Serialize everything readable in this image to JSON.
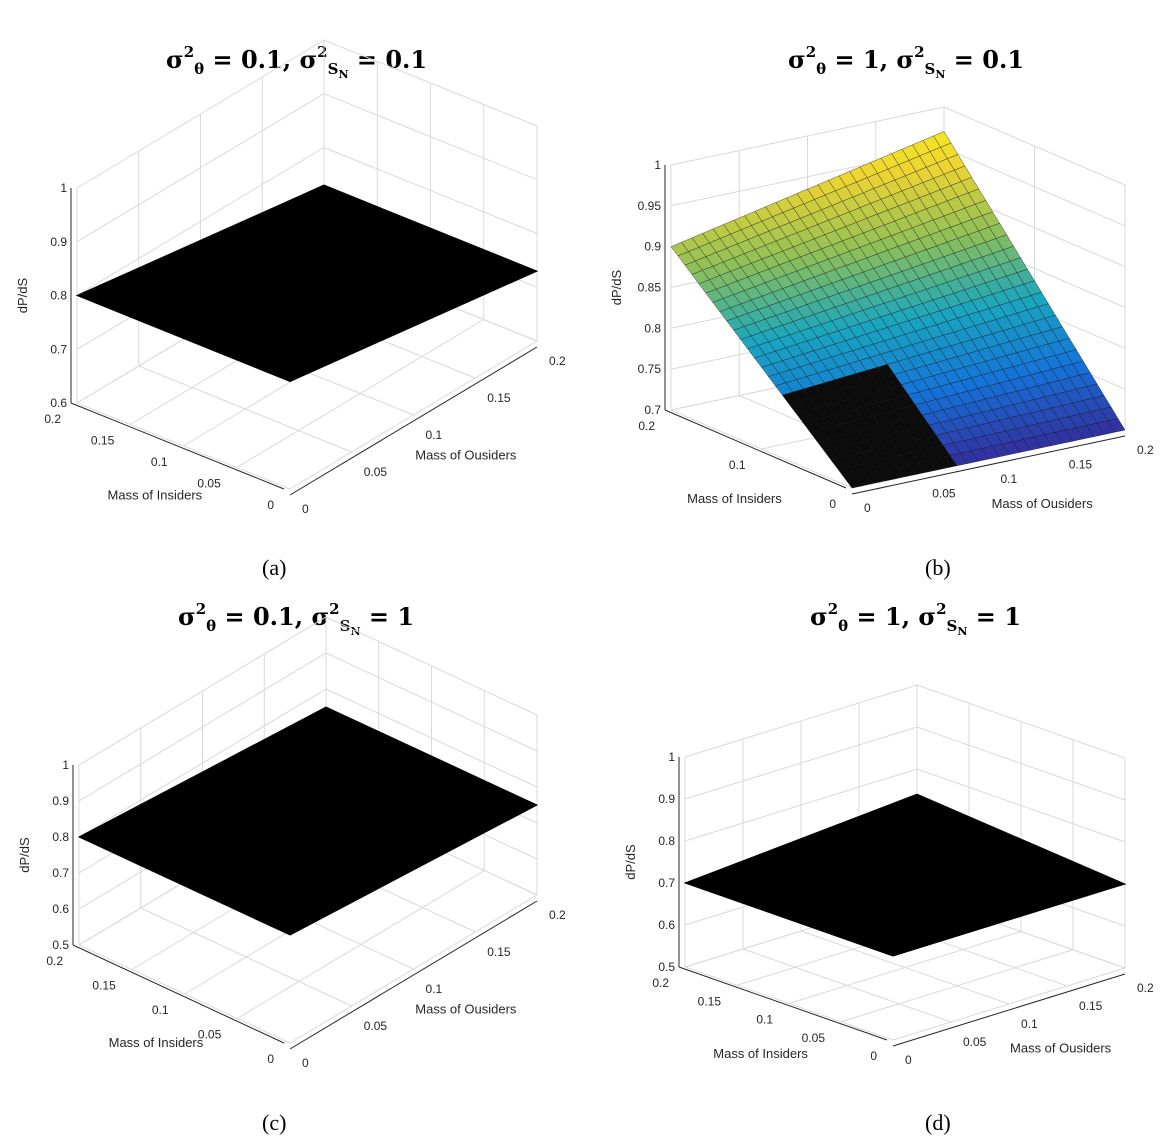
{
  "chart_data": [
    {
      "id": "a",
      "type": "surface3d",
      "title": {
        "sigma_theta": "0.1",
        "sigma_SN": "0.1"
      },
      "caption": "(a)",
      "xlabel": "Mass of Ousiders",
      "ylabel": "Mass of Insiders",
      "zlabel": "dP/dS",
      "xticks": [
        "0",
        "0.05",
        "0.1",
        "0.15",
        "0.2"
      ],
      "yticks": [
        "0",
        "0.05",
        "0.1",
        "0.15",
        "0.2"
      ],
      "zticks": [
        "0.6",
        "0.7",
        "0.8",
        "0.9",
        "1"
      ],
      "xlim": [
        0,
        0.2
      ],
      "ylim": [
        0,
        0.2
      ],
      "zlim": [
        0.6,
        1
      ],
      "surface": {
        "corners": {
          "x0y0": 0.8,
          "x1y0": 0.73,
          "x0y1": 0.8,
          "x1y1": 0.73
        },
        "fill": "solid-black"
      }
    },
    {
      "id": "b",
      "type": "surface3d",
      "title": {
        "sigma_theta": "1",
        "sigma_SN": "0.1"
      },
      "caption": "(b)",
      "xlabel": "Mass of Ousiders",
      "ylabel": "Mass of Insiders",
      "zlabel": "dP/dS",
      "xticks": [
        "0",
        "0.05",
        "0.1",
        "0.15",
        "0.2"
      ],
      "yticks": [
        "0",
        "0.1",
        "0.2"
      ],
      "zticks": [
        "0.7",
        "0.75",
        "0.8",
        "0.85",
        "0.9",
        "0.95",
        "1"
      ],
      "xlim": [
        0,
        0.2
      ],
      "ylim": [
        0,
        0.2
      ],
      "zlim": [
        0.7,
        1
      ],
      "surface": {
        "corners": {
          "x0y0": 0.7,
          "x1y0": 0.7,
          "x0y1": 0.9,
          "x1y1": 0.97
        },
        "fill": "parula-mesh"
      }
    },
    {
      "id": "c",
      "type": "surface3d",
      "title": {
        "sigma_theta": "0.1",
        "sigma_SN": "1"
      },
      "caption": "(c)",
      "xlabel": "Mass of Ousiders",
      "ylabel": "Mass of Insiders",
      "zlabel": "dP/dS",
      "xticks": [
        "0",
        "0.05",
        "0.1",
        "0.15",
        "0.2"
      ],
      "yticks": [
        "0",
        "0.05",
        "0.1",
        "0.15",
        "0.2"
      ],
      "zticks": [
        "0.5",
        "0.6",
        "0.7",
        "0.8",
        "0.9",
        "1"
      ],
      "xlim": [
        0,
        0.2
      ],
      "ylim": [
        0,
        0.2
      ],
      "zlim": [
        0.5,
        1
      ],
      "surface": {
        "corners": {
          "x0y0": 0.8,
          "x1y0": 0.75,
          "x0y1": 0.8,
          "x1y1": 0.75
        },
        "fill": "solid-black"
      }
    },
    {
      "id": "d",
      "type": "surface3d",
      "title": {
        "sigma_theta": "1",
        "sigma_SN": "1"
      },
      "caption": "(d)",
      "xlabel": "Mass of Ousiders",
      "ylabel": "Mass of Insiders",
      "zlabel": "dP/dS",
      "xticks": [
        "0",
        "0.05",
        "0.1",
        "0.15",
        "0.2"
      ],
      "yticks": [
        "0",
        "0.05",
        "0.1",
        "0.15",
        "0.2"
      ],
      "zticks": [
        "0.5",
        "0.6",
        "0.7",
        "0.8",
        "0.9",
        "1"
      ],
      "xlim": [
        0,
        0.2
      ],
      "ylim": [
        0,
        0.2
      ],
      "zlim": [
        0.5,
        1
      ],
      "surface": {
        "corners": {
          "x0y0": 0.7,
          "x1y0": 0.7,
          "x0y1": 0.7,
          "x1y1": 0.74
        },
        "fill": "solid-black"
      }
    }
  ]
}
